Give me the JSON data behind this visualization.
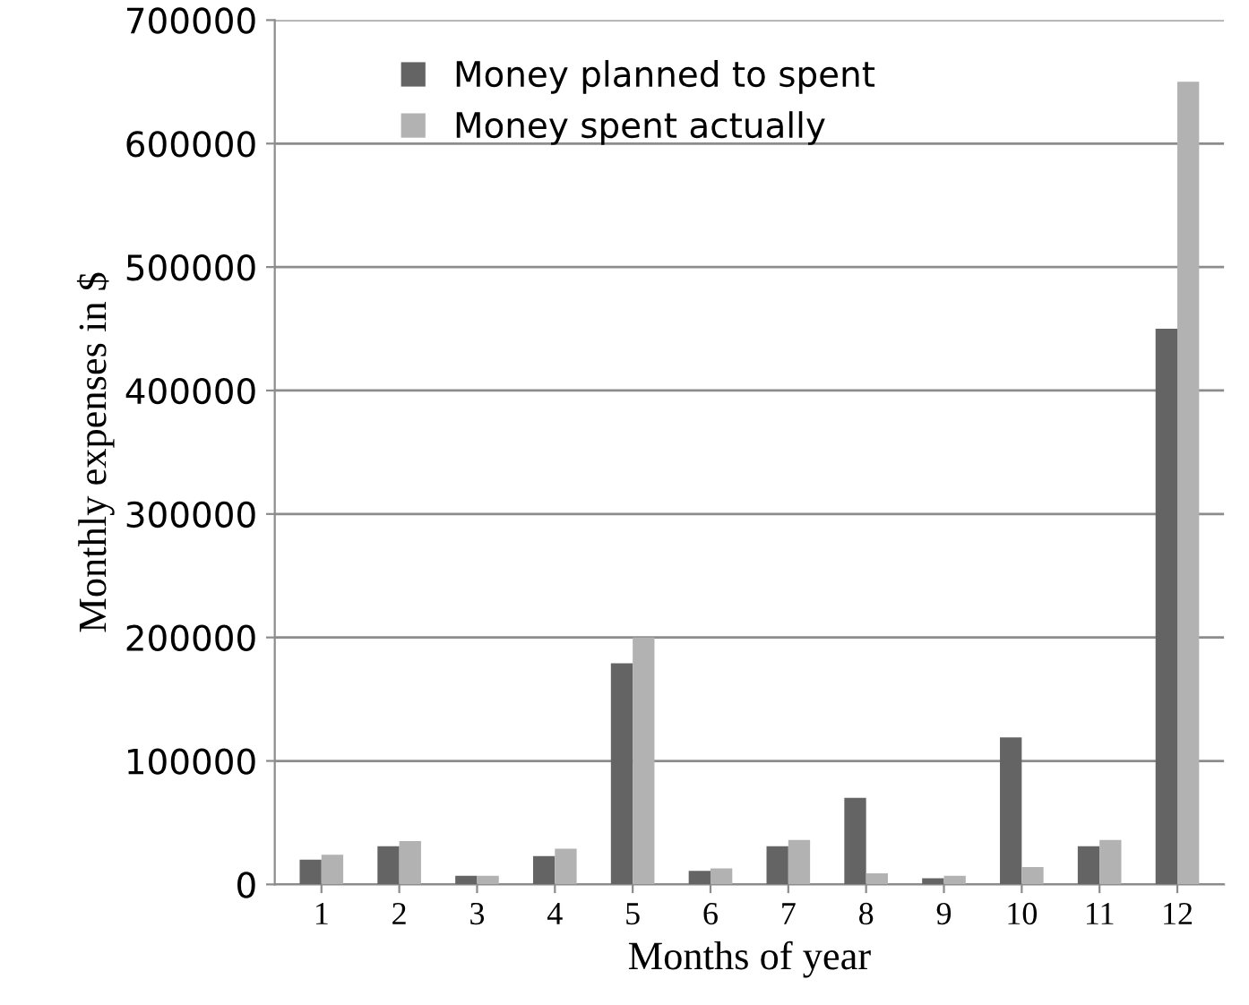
{
  "chart_data": {
    "type": "bar",
    "xlabel": "Months of year",
    "ylabel": "Monthly expenses in $",
    "categories": [
      "1",
      "2",
      "3",
      "4",
      "5",
      "6",
      "7",
      "8",
      "9",
      "10",
      "11",
      "12"
    ],
    "series": [
      {
        "name": "Money planned to spent",
        "color": "#646464",
        "values": [
          20000,
          31000,
          7000,
          23000,
          179000,
          11000,
          31000,
          70000,
          5000,
          119000,
          31000,
          450000
        ]
      },
      {
        "name": "Money spent actually",
        "color": "#b2b2b2",
        "values": [
          24000,
          35000,
          7000,
          29000,
          200000,
          13000,
          36000,
          9000,
          7000,
          14000,
          36000,
          650000
        ]
      }
    ],
    "ylim": [
      0,
      700000
    ],
    "yticks": [
      0,
      100000,
      200000,
      300000,
      400000,
      500000,
      600000,
      700000
    ],
    "grid": "y",
    "legend": "top left"
  }
}
